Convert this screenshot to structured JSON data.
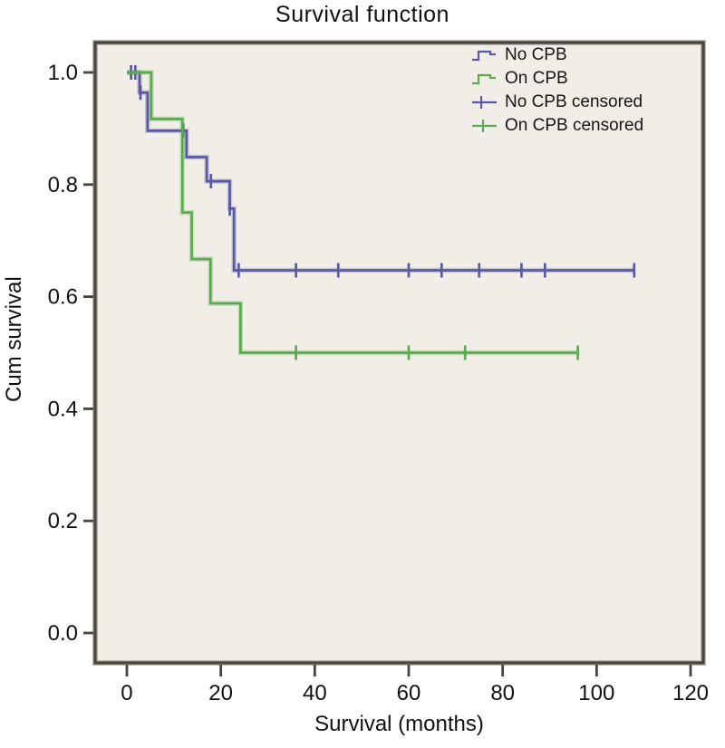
{
  "title": "Survival function",
  "axes": {
    "x_label": "Survival (months)",
    "y_label": "Cum survival"
  },
  "colors": {
    "no_cpb": "#5a5aa2",
    "on_cpb": "#5caa50",
    "frame": "#474440",
    "plot_bg": "#f1ede7",
    "text": "#111111"
  },
  "legend": {
    "items": [
      {
        "label": "No CPB",
        "series": "no_cpb",
        "symbol": "step"
      },
      {
        "label": "On CPB",
        "series": "on_cpb",
        "symbol": "step"
      },
      {
        "label": "No CPB censored",
        "series": "no_cpb",
        "symbol": "plus"
      },
      {
        "label": "On CPB censored",
        "series": "on_cpb",
        "symbol": "plus"
      }
    ]
  },
  "chart_data": {
    "type": "line",
    "subtype": "kaplan-meier-step",
    "title": "Survival function",
    "xlabel": "Survival (months)",
    "ylabel": "Cum survival",
    "xlim": [
      -6.75,
      122.7
    ],
    "ylim": [
      -0.0533,
      1.0533
    ],
    "x_ticks": [
      "0",
      "20",
      "40",
      "60",
      "80",
      "100",
      "120"
    ],
    "x_tick_values": [
      0,
      20,
      40,
      60,
      80,
      100,
      120
    ],
    "y_ticks": [
      "1.0",
      "0.8",
      "0.6",
      "0.4",
      "0.2",
      "0.0"
    ],
    "y_tick_values": [
      1.0,
      0.8,
      0.6,
      0.4,
      0.2,
      0.0
    ],
    "grid": false,
    "legend_position": "top-right-inside",
    "series": [
      {
        "name": "No CPB",
        "color_key": "no_cpb",
        "steps": [
          [
            0,
            1.0
          ],
          [
            2.7,
            1.0
          ],
          [
            2.7,
            0.964
          ],
          [
            4.4,
            0.964
          ],
          [
            4.4,
            0.896
          ],
          [
            12.7,
            0.896
          ],
          [
            12.7,
            0.849
          ],
          [
            17.0,
            0.849
          ],
          [
            17.0,
            0.806
          ],
          [
            21.9,
            0.806
          ],
          [
            21.9,
            0.757
          ],
          [
            22.8,
            0.757
          ],
          [
            22.8,
            0.647
          ],
          [
            108,
            0.647
          ]
        ],
        "censored": [
          [
            0.9,
            1.0
          ],
          [
            1.8,
            1.0
          ],
          [
            2.9,
            0.964
          ],
          [
            12.0,
            0.896
          ],
          [
            17.9,
            0.806
          ],
          [
            21.9,
            0.757
          ],
          [
            23.8,
            0.647
          ],
          [
            36,
            0.647
          ],
          [
            45,
            0.647
          ],
          [
            60,
            0.647
          ],
          [
            67,
            0.647
          ],
          [
            75,
            0.647
          ],
          [
            84,
            0.647
          ],
          [
            89,
            0.647
          ],
          [
            108,
            0.647
          ]
        ]
      },
      {
        "name": "On CPB",
        "color_key": "on_cpb",
        "steps": [
          [
            0,
            1.0
          ],
          [
            5.2,
            1.0
          ],
          [
            5.2,
            0.917
          ],
          [
            11.8,
            0.917
          ],
          [
            11.8,
            0.75
          ],
          [
            13.8,
            0.75
          ],
          [
            13.8,
            0.667
          ],
          [
            17.8,
            0.667
          ],
          [
            17.8,
            0.588
          ],
          [
            24.2,
            0.588
          ],
          [
            24.2,
            0.5
          ],
          [
            96,
            0.5
          ]
        ],
        "censored": [
          [
            36,
            0.5
          ],
          [
            60,
            0.5
          ],
          [
            72,
            0.5
          ],
          [
            96,
            0.5
          ]
        ]
      }
    ]
  }
}
